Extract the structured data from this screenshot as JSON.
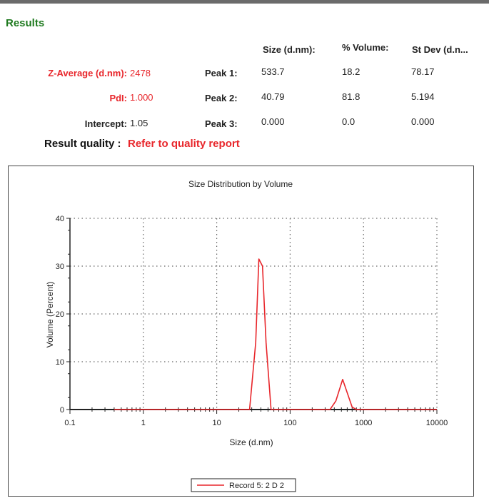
{
  "results": {
    "title": "Results",
    "columns": [
      "Size (d.nm):",
      "% Volume:",
      "St Dev (d.n..."
    ],
    "z_average_label": "Z-Average (d.nm):",
    "z_average_value": "2478",
    "pdi_label": "PdI:",
    "pdi_value": "1.000",
    "intercept_label": "Intercept:",
    "intercept_value": "1.05",
    "peaks": [
      {
        "label": "Peak 1:",
        "size": "533.7",
        "volume": "18.2",
        "stdev": "78.17"
      },
      {
        "label": "Peak 2:",
        "size": "40.79",
        "volume": "81.8",
        "stdev": "5.194"
      },
      {
        "label": "Peak 3:",
        "size": "0.000",
        "volume": "0.0",
        "stdev": "0.000"
      }
    ],
    "quality_label": "Result quality :",
    "quality_value": "Refer to quality report"
  },
  "chart_data": {
    "type": "line",
    "title": "Size Distribution by Volume",
    "xlabel": "Size (d.nm)",
    "ylabel": "Volume (Percent)",
    "x_scale": "log",
    "xlim": [
      0.1,
      10000
    ],
    "ylim": [
      0,
      40
    ],
    "x_ticks": [
      "0.1",
      "1",
      "10",
      "100",
      "1000",
      "10000"
    ],
    "y_ticks": [
      "0",
      "10",
      "20",
      "30",
      "40"
    ],
    "grid": "dotted",
    "legend_position": "bottom",
    "series": [
      {
        "name": "Record 5: 2 D 2",
        "color": "#e8262b",
        "x": [
          0.4,
          28,
          34,
          37.5,
          42,
          47,
          55,
          63,
          350,
          420,
          520,
          600,
          700,
          800,
          10000
        ],
        "y": [
          0,
          0,
          14,
          31.5,
          30,
          14,
          0,
          0,
          0,
          1.8,
          6.3,
          3.5,
          0.5,
          0,
          0
        ]
      }
    ]
  }
}
